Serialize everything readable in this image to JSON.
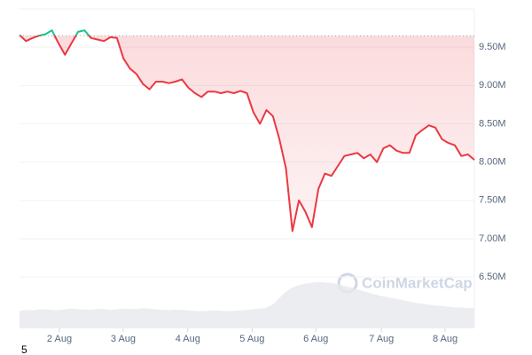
{
  "chart_data": {
    "type": "line",
    "x": [
      0,
      1,
      2,
      3,
      4,
      5,
      6,
      7,
      8,
      9,
      10,
      11,
      12,
      13,
      14,
      15,
      16,
      17,
      18,
      19,
      20,
      21,
      22,
      23,
      24,
      25,
      26,
      27,
      28,
      29,
      30,
      31,
      32,
      33,
      34,
      35,
      36,
      37,
      38,
      39,
      40,
      41,
      42,
      43,
      44,
      45,
      46,
      47,
      48,
      49,
      50,
      51,
      52,
      53,
      54,
      55,
      56,
      57,
      58,
      59,
      60,
      61,
      62,
      63,
      64,
      65,
      66,
      67,
      68,
      69,
      70
    ],
    "xlim": [
      0,
      70
    ],
    "xticks": [
      {
        "value": 6.14,
        "label": "2 Aug"
      },
      {
        "value": 15.96,
        "label": "3 Aug"
      },
      {
        "value": 25.9,
        "label": "4 Aug"
      },
      {
        "value": 35.8,
        "label": "5 Aug"
      },
      {
        "value": 45.6,
        "label": "6 Aug"
      },
      {
        "value": 55.7,
        "label": "7 Aug"
      },
      {
        "value": 65.5,
        "label": "8 Aug"
      }
    ],
    "ylim": [
      5830000,
      10000000
    ],
    "yticks": [
      {
        "value": 6500000,
        "label": "6.50M"
      },
      {
        "value": 7000000,
        "label": "7.00M"
      },
      {
        "value": 7500000,
        "label": "7.50M"
      },
      {
        "value": 8000000,
        "label": "8.00M"
      },
      {
        "value": 8500000,
        "label": "8.50M"
      },
      {
        "value": 9000000,
        "label": "9.00M"
      },
      {
        "value": 9500000,
        "label": "9.50M"
      }
    ],
    "reference_line": 9650000,
    "grid": true,
    "y2lim": [
      0,
      100
    ],
    "series": [
      {
        "color": "#ea3943",
        "color_above_reference": "#16c784",
        "values": [
          9660000,
          9580000,
          9620000,
          9650000,
          9670000,
          9720000,
          9550000,
          9400000,
          9550000,
          9700000,
          9720000,
          9620000,
          9600000,
          9580000,
          9630000,
          9620000,
          9350000,
          9220000,
          9150000,
          9020000,
          8950000,
          9050000,
          9050000,
          9030000,
          9050000,
          9080000,
          8970000,
          8900000,
          8850000,
          8920000,
          8920000,
          8900000,
          8920000,
          8900000,
          8930000,
          8900000,
          8650000,
          8500000,
          8680000,
          8600000,
          8300000,
          7920000,
          7100000,
          7500000,
          7350000,
          7150000,
          7650000,
          7850000,
          7820000,
          7950000,
          8080000,
          8100000,
          8120000,
          8050000,
          8100000,
          8000000,
          8180000,
          8220000,
          8150000,
          8120000,
          8120000,
          8350000,
          8420000,
          8480000,
          8450000,
          8300000,
          8250000,
          8220000,
          8080000,
          8100000,
          8030000
        ]
      },
      {
        "color": "#e6e8ee",
        "axis": "y2",
        "values": [
          5.5,
          5.8,
          5.6,
          5.9,
          6,
          5.8,
          5.7,
          6,
          6.2,
          6,
          5.9,
          5.8,
          6.1,
          6,
          5.8,
          6,
          6.2,
          6.1,
          6,
          6.3,
          6.2,
          6,
          5.8,
          5.7,
          5.9,
          5.8,
          5.6,
          5.5,
          5.4,
          5.5,
          5.6,
          5.5,
          5.4,
          5.5,
          5.6,
          5.8,
          6,
          6.2,
          6.5,
          7.5,
          9.5,
          11.5,
          12.8,
          13.5,
          14,
          14.3,
          14.5,
          14.4,
          14.2,
          13.8,
          13.3,
          12.8,
          12.2,
          11.6,
          11,
          10.5,
          10,
          9.6,
          9.2,
          8.8,
          8.4,
          8,
          7.7,
          7.4,
          7.2,
          7,
          6.8,
          6.6,
          6.5,
          6.4,
          6.3
        ]
      }
    ],
    "watermark": "CoinMarketCap",
    "corner_text": "5"
  }
}
